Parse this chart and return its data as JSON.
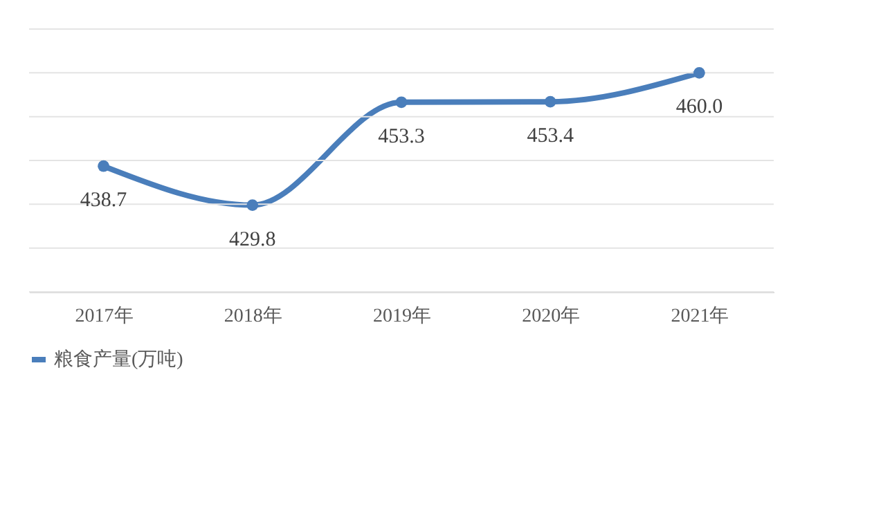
{
  "chart_data": {
    "type": "line",
    "categories": [
      "2017年",
      "2018年",
      "2019年",
      "2020年",
      "2021年"
    ],
    "series": [
      {
        "name": "粮食产量(万吨)",
        "color": "#4a7ebb",
        "values": [
          438.7,
          429.8,
          453.3,
          453.4,
          460.0
        ],
        "value_labels": [
          "438.7",
          "429.8",
          "453.3",
          "453.4",
          "460.0"
        ]
      }
    ],
    "ylim": [
      410,
      470
    ],
    "yticks": [
      {
        "value": 410,
        "label": null
      },
      {
        "value": 420,
        "label": null
      },
      {
        "value": 430,
        "label": null
      },
      {
        "value": 440,
        "label": null
      },
      {
        "value": 450,
        "label": null
      },
      {
        "value": 460,
        "label": null
      },
      {
        "value": 470,
        "label": null
      }
    ],
    "tick_labels": "x",
    "grid": "y",
    "legend": "bottom",
    "marker": "circle",
    "line_style": "solid"
  }
}
